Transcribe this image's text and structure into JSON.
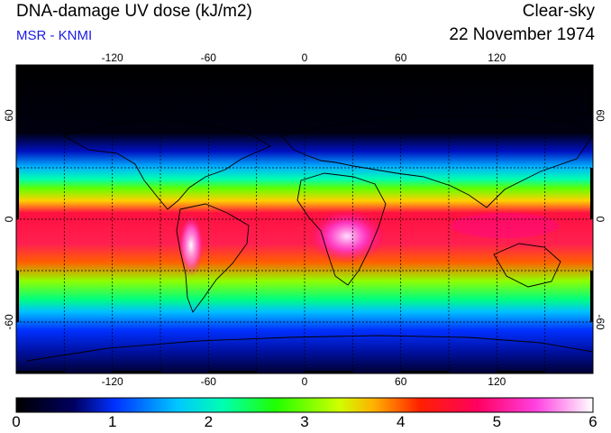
{
  "header": {
    "title": "DNA-damage UV dose (kJ/m2)",
    "subtitle": "MSR - KNMI",
    "condition": "Clear-sky",
    "date": "22 November 1974"
  },
  "map": {
    "projection": "equirectangular",
    "lon_range": [
      -180,
      180
    ],
    "lat_range": [
      -90,
      90
    ],
    "grid": true,
    "lon_ticks": [
      "-120",
      "-60",
      "0",
      "60",
      "120"
    ],
    "lat_ticks": [
      "60",
      "0",
      "-60"
    ],
    "colors": {
      "grid": "#000000",
      "coastline": "#000000"
    }
  },
  "colorbar": {
    "labels": [
      "0",
      "1",
      "2",
      "3",
      "4",
      "5",
      "6"
    ],
    "range": [
      0,
      6
    ]
  }
}
